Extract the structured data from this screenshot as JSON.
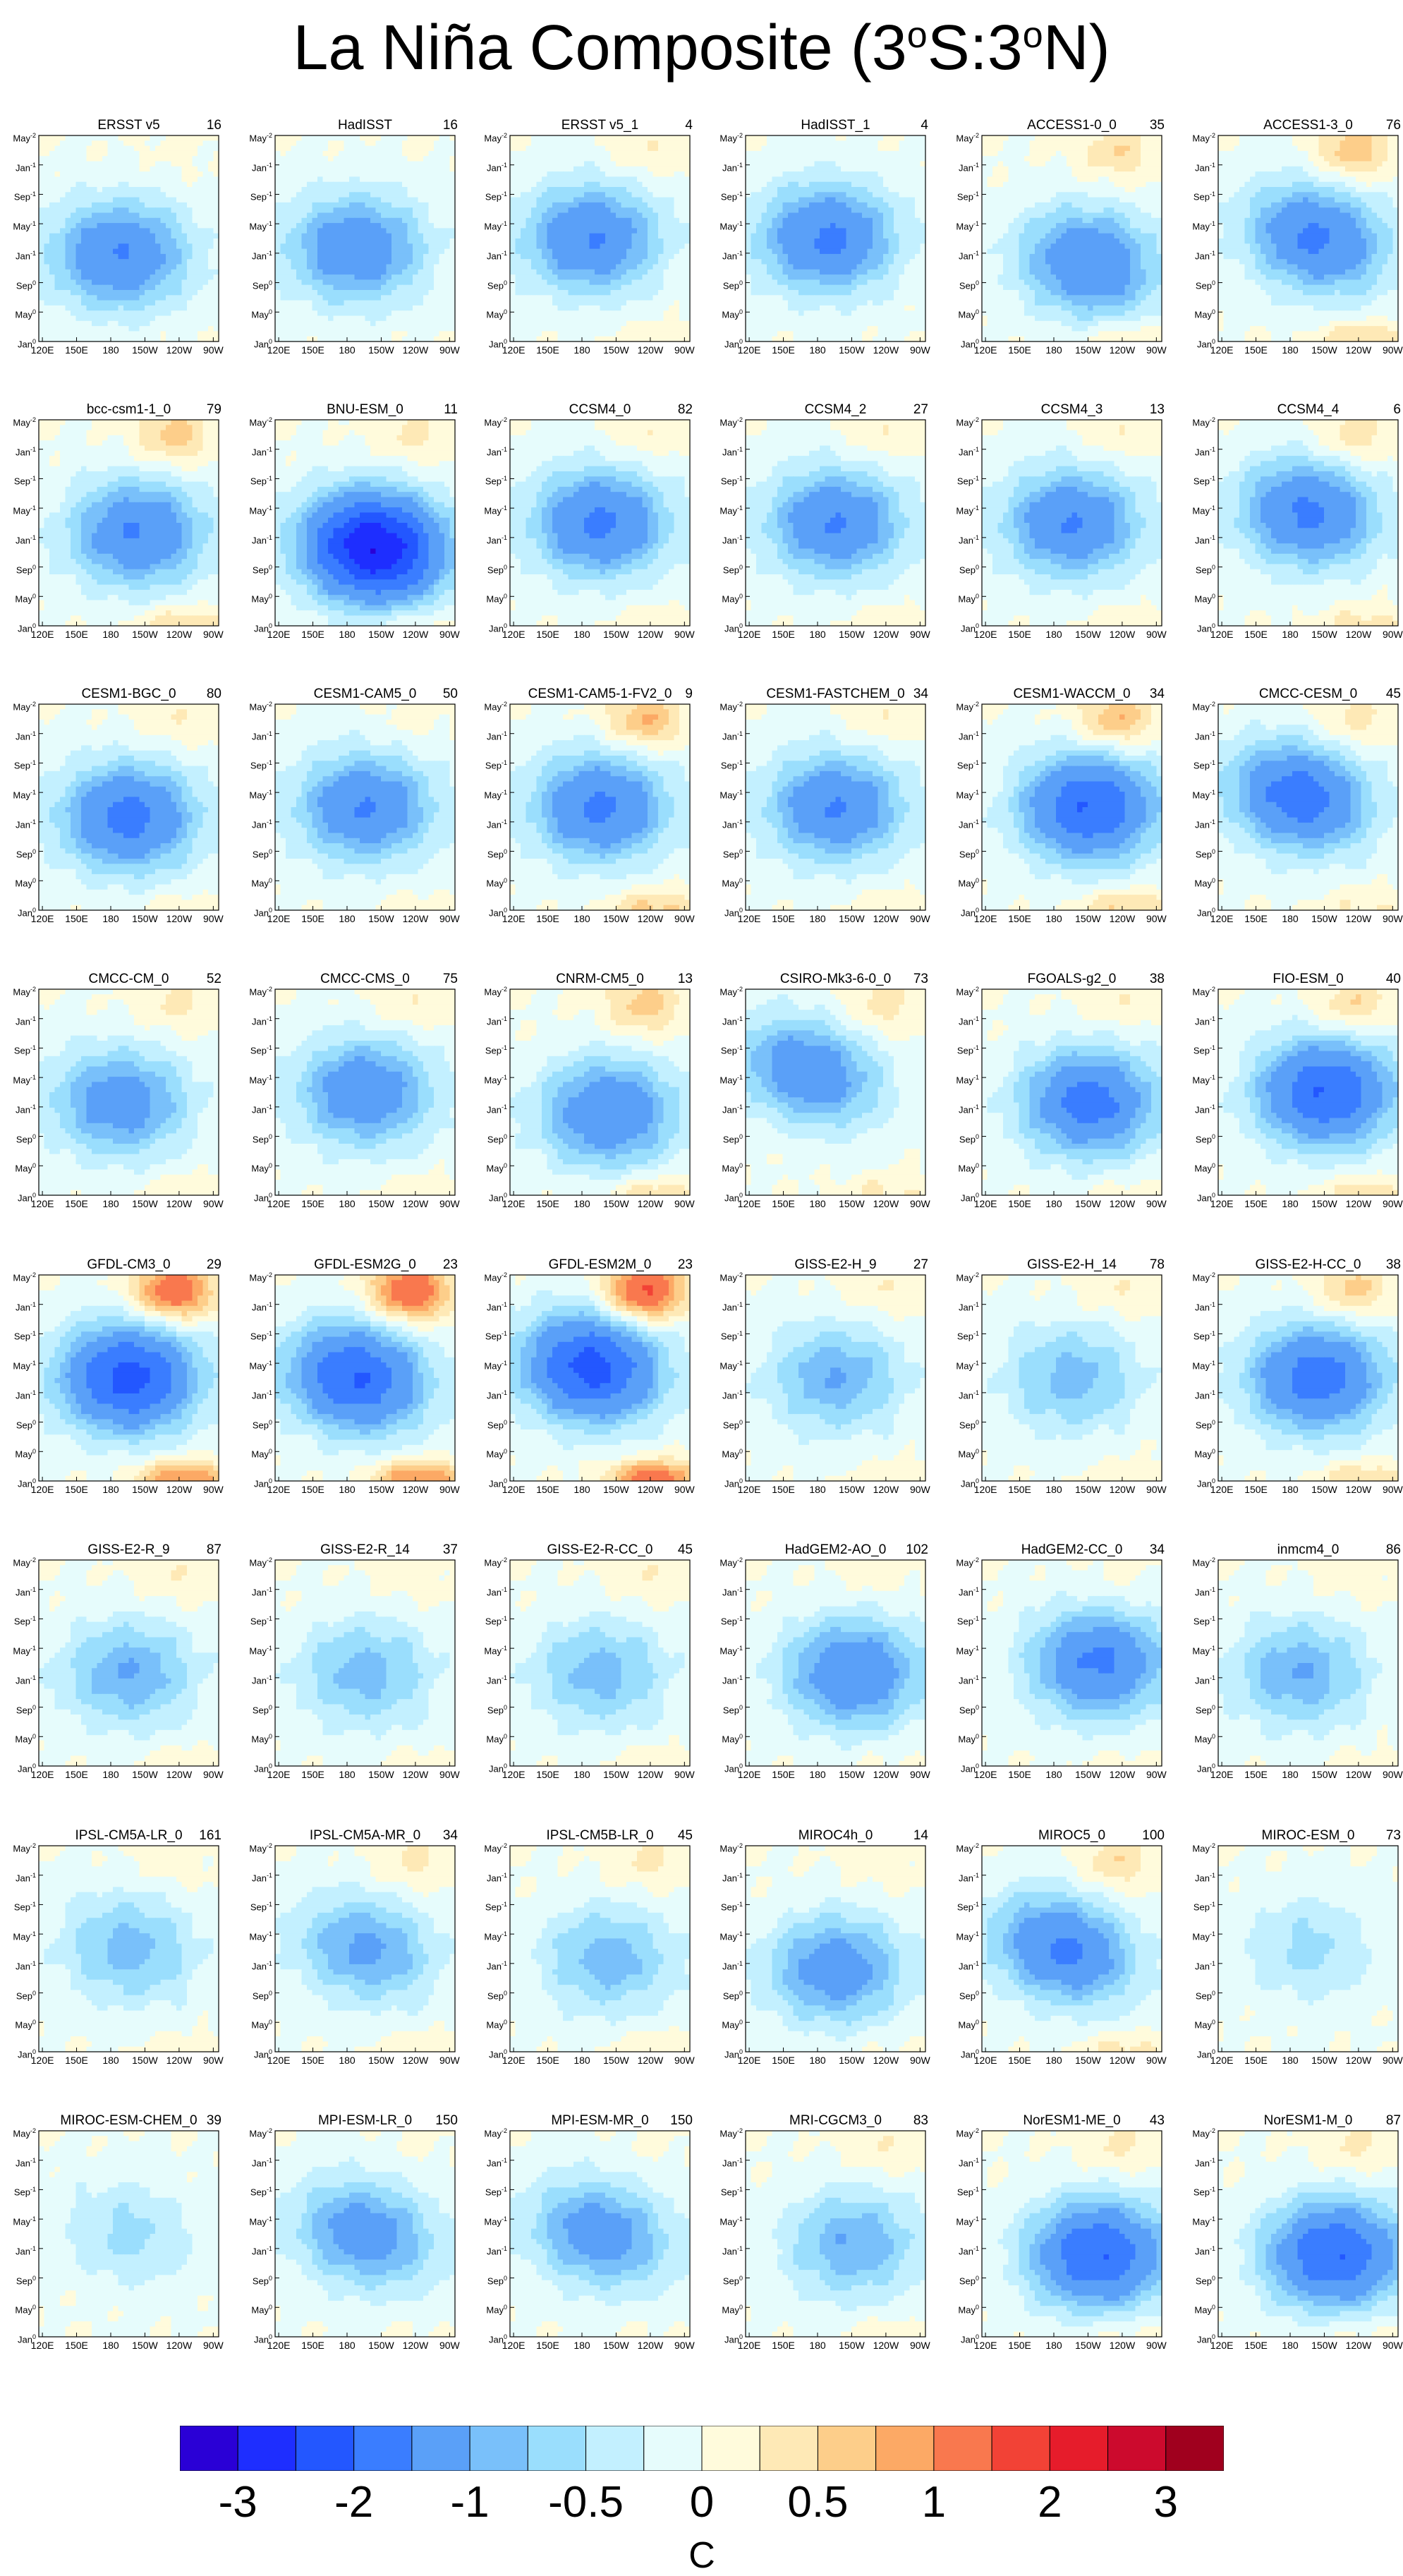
{
  "title": {
    "main": "La Niña Composite (3",
    "sup1": "o",
    "mid": "S:3",
    "sup2": "o",
    "end": "N)"
  },
  "chart_data": {
    "type": "heatmap",
    "description_axes": {
      "x_ticks": [
        "120E",
        "150E",
        "180",
        "150W",
        "120W",
        "90W"
      ],
      "y_ticks": [
        {
          "base": "May",
          "sup": "-2"
        },
        {
          "base": "Jan",
          "sup": "-1"
        },
        {
          "base": "Sep",
          "sup": "-1"
        },
        {
          "base": "May",
          "sup": "-1"
        },
        {
          "base": "Jan",
          "sup": "-1"
        },
        {
          "base": "Sep",
          "sup": "0"
        },
        {
          "base": "May",
          "sup": "0"
        },
        {
          "base": "Jan",
          "sup": "0"
        }
      ]
    },
    "panels": [
      {
        "name": "ERSST v5",
        "count": "16",
        "min": -1.5,
        "cx": 0.45,
        "cy": 0.58,
        "warm": 0.1,
        "drift": 0.0
      },
      {
        "name": "HadISST",
        "count": "16",
        "min": -1.4,
        "cx": 0.45,
        "cy": 0.55,
        "warm": 0.05,
        "drift": 0.0
      },
      {
        "name": "ERSST v5_1",
        "count": "4",
        "min": -1.5,
        "cx": 0.45,
        "cy": 0.5,
        "warm": 0.3,
        "drift": 0.0
      },
      {
        "name": "HadISST_1",
        "count": "4",
        "min": -1.6,
        "cx": 0.45,
        "cy": 0.5,
        "warm": 0.0,
        "drift": 0.0
      },
      {
        "name": "ACCESS1-0_0",
        "count": "35",
        "min": -1.5,
        "cx": 0.6,
        "cy": 0.62,
        "warm": 0.6,
        "drift": 0.15
      },
      {
        "name": "ACCESS1-3_0",
        "count": "76",
        "min": -1.6,
        "cx": 0.55,
        "cy": 0.5,
        "warm": 0.9,
        "drift": 0.25
      },
      {
        "name": "bcc-csm1-1_0",
        "count": "79",
        "min": -1.5,
        "cx": 0.55,
        "cy": 0.55,
        "warm": 0.8,
        "drift": 0.0
      },
      {
        "name": "BNU-ESM_0",
        "count": "11",
        "min": -3.0,
        "cx": 0.55,
        "cy": 0.62,
        "warm": 0.4,
        "drift": 0.1
      },
      {
        "name": "CCSM4_0",
        "count": "82",
        "min": -1.6,
        "cx": 0.5,
        "cy": 0.5,
        "warm": 0.3,
        "drift": 0.0
      },
      {
        "name": "CCSM4_2",
        "count": "27",
        "min": -1.5,
        "cx": 0.5,
        "cy": 0.5,
        "warm": 0.3,
        "drift": 0.0
      },
      {
        "name": "CCSM4_3",
        "count": "13",
        "min": -1.5,
        "cx": 0.5,
        "cy": 0.5,
        "warm": 0.3,
        "drift": 0.0
      },
      {
        "name": "CCSM4_4",
        "count": "6",
        "min": -1.6,
        "cx": 0.5,
        "cy": 0.45,
        "warm": 0.6,
        "drift": 0.1
      },
      {
        "name": "CESM1-BGC_0",
        "count": "80",
        "min": -1.7,
        "cx": 0.5,
        "cy": 0.55,
        "warm": 0.3,
        "drift": 0.0
      },
      {
        "name": "CESM1-CAM5_0",
        "count": "50",
        "min": -1.5,
        "cx": 0.5,
        "cy": 0.5,
        "warm": 0.2,
        "drift": 0.0
      },
      {
        "name": "CESM1-CAM5-1-FV2_0",
        "count": "9",
        "min": -1.6,
        "cx": 0.5,
        "cy": 0.5,
        "warm": 1.0,
        "drift": 0.0
      },
      {
        "name": "CESM1-FASTCHEM_0",
        "count": "34",
        "min": -1.5,
        "cx": 0.5,
        "cy": 0.5,
        "warm": 0.3,
        "drift": 0.0
      },
      {
        "name": "CESM1-WACCM_0",
        "count": "34",
        "min": -2.0,
        "cx": 0.6,
        "cy": 0.5,
        "warm": 1.0,
        "drift": 0.0
      },
      {
        "name": "CMCC-CESM_0",
        "count": "45",
        "min": -1.8,
        "cx": 0.45,
        "cy": 0.45,
        "warm": 0.5,
        "drift": 0.2
      },
      {
        "name": "CMCC-CM_0",
        "count": "52",
        "min": -1.3,
        "cx": 0.45,
        "cy": 0.55,
        "warm": 0.4,
        "drift": 0.0
      },
      {
        "name": "CMCC-CMS_0",
        "count": "75",
        "min": -1.4,
        "cx": 0.5,
        "cy": 0.5,
        "warm": 0.3,
        "drift": 0.0
      },
      {
        "name": "CNRM-CM5_0",
        "count": "13",
        "min": -1.5,
        "cx": 0.55,
        "cy": 0.6,
        "warm": 0.8,
        "drift": 0.0
      },
      {
        "name": "CSIRO-Mk3-6-0_0",
        "count": "73",
        "min": -1.4,
        "cx": 0.35,
        "cy": 0.4,
        "warm": 0.5,
        "drift": 0.35
      },
      {
        "name": "FGOALS-g2_0",
        "count": "38",
        "min": -1.7,
        "cx": 0.6,
        "cy": 0.55,
        "warm": 0.3,
        "drift": 0.0
      },
      {
        "name": "FIO-ESM_0",
        "count": "40",
        "min": -2.0,
        "cx": 0.6,
        "cy": 0.5,
        "warm": 0.7,
        "drift": 0.0
      },
      {
        "name": "GFDL-CM3_0",
        "count": "29",
        "min": -2.2,
        "cx": 0.5,
        "cy": 0.5,
        "warm": 1.8,
        "drift": 0.0
      },
      {
        "name": "GFDL-ESM2G_0",
        "count": "23",
        "min": -2.0,
        "cx": 0.45,
        "cy": 0.5,
        "warm": 1.8,
        "drift": 0.15
      },
      {
        "name": "GFDL-ESM2M_0",
        "count": "23",
        "min": -2.2,
        "cx": 0.45,
        "cy": 0.45,
        "warm": 2.0,
        "drift": 0.1
      },
      {
        "name": "GISS-E2-H_9",
        "count": "27",
        "min": -1.0,
        "cx": 0.5,
        "cy": 0.5,
        "warm": 0.3,
        "drift": 0.0
      },
      {
        "name": "GISS-E2-H_14",
        "count": "78",
        "min": -0.9,
        "cx": 0.5,
        "cy": 0.5,
        "warm": 0.3,
        "drift": 0.0
      },
      {
        "name": "GISS-E2-H-CC_0",
        "count": "38",
        "min": -1.8,
        "cx": 0.55,
        "cy": 0.5,
        "warm": 0.8,
        "drift": 0.0
      },
      {
        "name": "GISS-E2-R_9",
        "count": "87",
        "min": -1.0,
        "cx": 0.5,
        "cy": 0.55,
        "warm": 0.3,
        "drift": 0.0
      },
      {
        "name": "GISS-E2-R_14",
        "count": "37",
        "min": -0.9,
        "cx": 0.5,
        "cy": 0.55,
        "warm": 0.2,
        "drift": 0.0
      },
      {
        "name": "GISS-E2-R-CC_0",
        "count": "45",
        "min": -0.9,
        "cx": 0.5,
        "cy": 0.55,
        "warm": 0.3,
        "drift": 0.0
      },
      {
        "name": "HadGEM2-AO_0",
        "count": "102",
        "min": -1.5,
        "cx": 0.6,
        "cy": 0.55,
        "warm": 0.2,
        "drift": 0.0
      },
      {
        "name": "HadGEM2-CC_0",
        "count": "34",
        "min": -1.6,
        "cx": 0.65,
        "cy": 0.5,
        "warm": 0.2,
        "drift": 0.0
      },
      {
        "name": "inmcm4_0",
        "count": "86",
        "min": -1.0,
        "cx": 0.45,
        "cy": 0.55,
        "warm": 0.2,
        "drift": 0.0
      },
      {
        "name": "IPSL-CM5A-LR_0",
        "count": "161",
        "min": -0.9,
        "cx": 0.5,
        "cy": 0.5,
        "warm": 0.2,
        "drift": 0.1
      },
      {
        "name": "IPSL-CM5A-MR_0",
        "count": "34",
        "min": -1.1,
        "cx": 0.5,
        "cy": 0.5,
        "warm": 0.4,
        "drift": 0.2
      },
      {
        "name": "IPSL-CM5B-LR_0",
        "count": "45",
        "min": -0.9,
        "cx": 0.55,
        "cy": 0.55,
        "warm": 0.4,
        "drift": 0.0
      },
      {
        "name": "MIROC4h_0",
        "count": "14",
        "min": -1.3,
        "cx": 0.5,
        "cy": 0.6,
        "warm": 0.2,
        "drift": 0.0
      },
      {
        "name": "MIROC5_0",
        "count": "100",
        "min": -1.6,
        "cx": 0.45,
        "cy": 0.5,
        "warm": 0.6,
        "drift": 0.3
      },
      {
        "name": "MIROC-ESM_0",
        "count": "73",
        "min": -0.6,
        "cx": 0.5,
        "cy": 0.5,
        "warm": 0.0,
        "drift": 0.1
      },
      {
        "name": "MIROC-ESM-CHEM_0",
        "count": "39",
        "min": -0.6,
        "cx": 0.5,
        "cy": 0.5,
        "warm": 0.0,
        "drift": 0.2
      },
      {
        "name": "MPI-ESM-LR_0",
        "count": "150",
        "min": -1.3,
        "cx": 0.5,
        "cy": 0.5,
        "warm": 0.1,
        "drift": 0.25
      },
      {
        "name": "MPI-ESM-MR_0",
        "count": "150",
        "min": -1.3,
        "cx": 0.5,
        "cy": 0.5,
        "warm": 0.1,
        "drift": 0.25
      },
      {
        "name": "MRI-CGCM3_0",
        "count": "83",
        "min": -1.0,
        "cx": 0.6,
        "cy": 0.55,
        "warm": 0.3,
        "drift": 0.0
      },
      {
        "name": "NorESM1-ME_0",
        "count": "43",
        "min": -2.0,
        "cx": 0.65,
        "cy": 0.6,
        "warm": 0.4,
        "drift": 0.0
      },
      {
        "name": "NorESM1-M_0",
        "count": "87",
        "min": -2.0,
        "cx": 0.65,
        "cy": 0.6,
        "warm": 0.4,
        "drift": 0.0
      }
    ],
    "colorbar": {
      "colors": [
        "#2a00d6",
        "#1e2eff",
        "#2357ff",
        "#3a7dff",
        "#5aa0f8",
        "#79c0fa",
        "#9adefd",
        "#c3f0ff",
        "#e6fcfc",
        "#fffbdc",
        "#fee9b6",
        "#fdce8a",
        "#fca965",
        "#f9784e",
        "#f24236",
        "#e61c2b",
        "#cc0a2d",
        "#a0001e"
      ],
      "labels": [
        "-3",
        "-2",
        "-1",
        "-0.5",
        "0",
        "0.5",
        "1",
        "2",
        "3"
      ],
      "units": "C"
    }
  }
}
